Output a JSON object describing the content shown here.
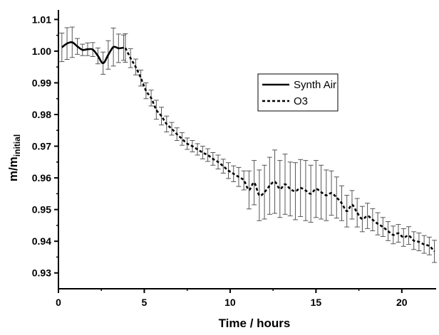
{
  "chart_data": {
    "type": "line",
    "title": "",
    "xlabel": "Time / hours",
    "ylabel": {
      "main": "m/m",
      "sub": "initial"
    },
    "xlim": [
      0,
      22
    ],
    "ylim": [
      0.925,
      1.013
    ],
    "xticks": [
      0,
      5,
      10,
      15,
      20
    ],
    "xtick_labels": [
      "0",
      "5",
      "10",
      "15",
      "20"
    ],
    "yticks": [
      0.93,
      0.94,
      0.95,
      0.96,
      0.97,
      0.98,
      0.99,
      1.0,
      1.01
    ],
    "ytick_labels": [
      "0.93",
      "0.94",
      "0.95",
      "0.96",
      "0.97",
      "0.98",
      "0.99",
      "1.00",
      "1.01"
    ],
    "grid": false,
    "legend_position": "upper-right-inside",
    "series": [
      {
        "name": "Synth Air",
        "style": "solid",
        "color": "#000000",
        "x": [
          0.2,
          0.5,
          0.8,
          1.1,
          1.4,
          1.7,
          2.0,
          2.3,
          2.6,
          2.9,
          3.2,
          3.5,
          3.8
        ],
        "y": [
          1.0012,
          1.0024,
          1.0028,
          1.0015,
          1.0004,
          1.0006,
          1.0005,
          0.9985,
          0.9962,
          0.9988,
          1.0013,
          1.0009,
          1.0011
        ],
        "err": [
          0.0045,
          0.005,
          0.0048,
          0.0025,
          0.0018,
          0.002,
          0.0022,
          0.0025,
          0.0035,
          0.0045,
          0.006,
          0.0045,
          0.004
        ]
      },
      {
        "name": "O3",
        "style": "dashed",
        "color": "#000000",
        "x": [
          3.9,
          4.2,
          4.5,
          4.8,
          5.1,
          5.4,
          5.7,
          6.0,
          6.3,
          6.6,
          6.9,
          7.2,
          7.5,
          7.8,
          8.1,
          8.4,
          8.7,
          9.0,
          9.3,
          9.6,
          9.9,
          10.2,
          10.5,
          10.8,
          11.1,
          11.4,
          11.7,
          12.0,
          12.3,
          12.6,
          12.9,
          13.2,
          13.5,
          13.8,
          14.1,
          14.4,
          14.7,
          15.0,
          15.3,
          15.6,
          15.9,
          16.2,
          16.5,
          16.8,
          17.1,
          17.4,
          17.7,
          18.0,
          18.3,
          18.6,
          18.9,
          19.2,
          19.5,
          19.8,
          20.1,
          20.4,
          20.7,
          21.0,
          21.3,
          21.6,
          21.9
        ],
        "y": [
          1.001,
          0.9978,
          0.995,
          0.9915,
          0.9875,
          0.9852,
          0.9815,
          0.9795,
          0.977,
          0.9755,
          0.9738,
          0.9723,
          0.9708,
          0.97,
          0.969,
          0.968,
          0.9672,
          0.966,
          0.965,
          0.9637,
          0.9623,
          0.9613,
          0.9603,
          0.9592,
          0.9562,
          0.9585,
          0.9545,
          0.9555,
          0.9575,
          0.9588,
          0.9565,
          0.958,
          0.9565,
          0.9558,
          0.9568,
          0.956,
          0.955,
          0.9565,
          0.9555,
          0.9545,
          0.9552,
          0.9538,
          0.952,
          0.9495,
          0.9515,
          0.949,
          0.947,
          0.948,
          0.9468,
          0.9455,
          0.9445,
          0.9432,
          0.942,
          0.9425,
          0.9412,
          0.9418,
          0.9402,
          0.9398,
          0.939,
          0.9385,
          0.9368
        ],
        "err": [
          0.0045,
          0.003,
          0.0025,
          0.0025,
          0.0025,
          0.0025,
          0.003,
          0.0028,
          0.0025,
          0.002,
          0.002,
          0.002,
          0.0018,
          0.0018,
          0.0018,
          0.002,
          0.002,
          0.002,
          0.0022,
          0.0022,
          0.0025,
          0.0025,
          0.003,
          0.003,
          0.006,
          0.007,
          0.008,
          0.0085,
          0.009,
          0.01,
          0.009,
          0.0095,
          0.0085,
          0.009,
          0.009,
          0.0095,
          0.009,
          0.009,
          0.0085,
          0.008,
          0.007,
          0.0065,
          0.0055,
          0.005,
          0.0045,
          0.0045,
          0.004,
          0.004,
          0.0035,
          0.0035,
          0.003,
          0.003,
          0.0028,
          0.0028,
          0.0028,
          0.0028,
          0.0028,
          0.0028,
          0.0028,
          0.0028,
          0.0035
        ]
      }
    ]
  }
}
